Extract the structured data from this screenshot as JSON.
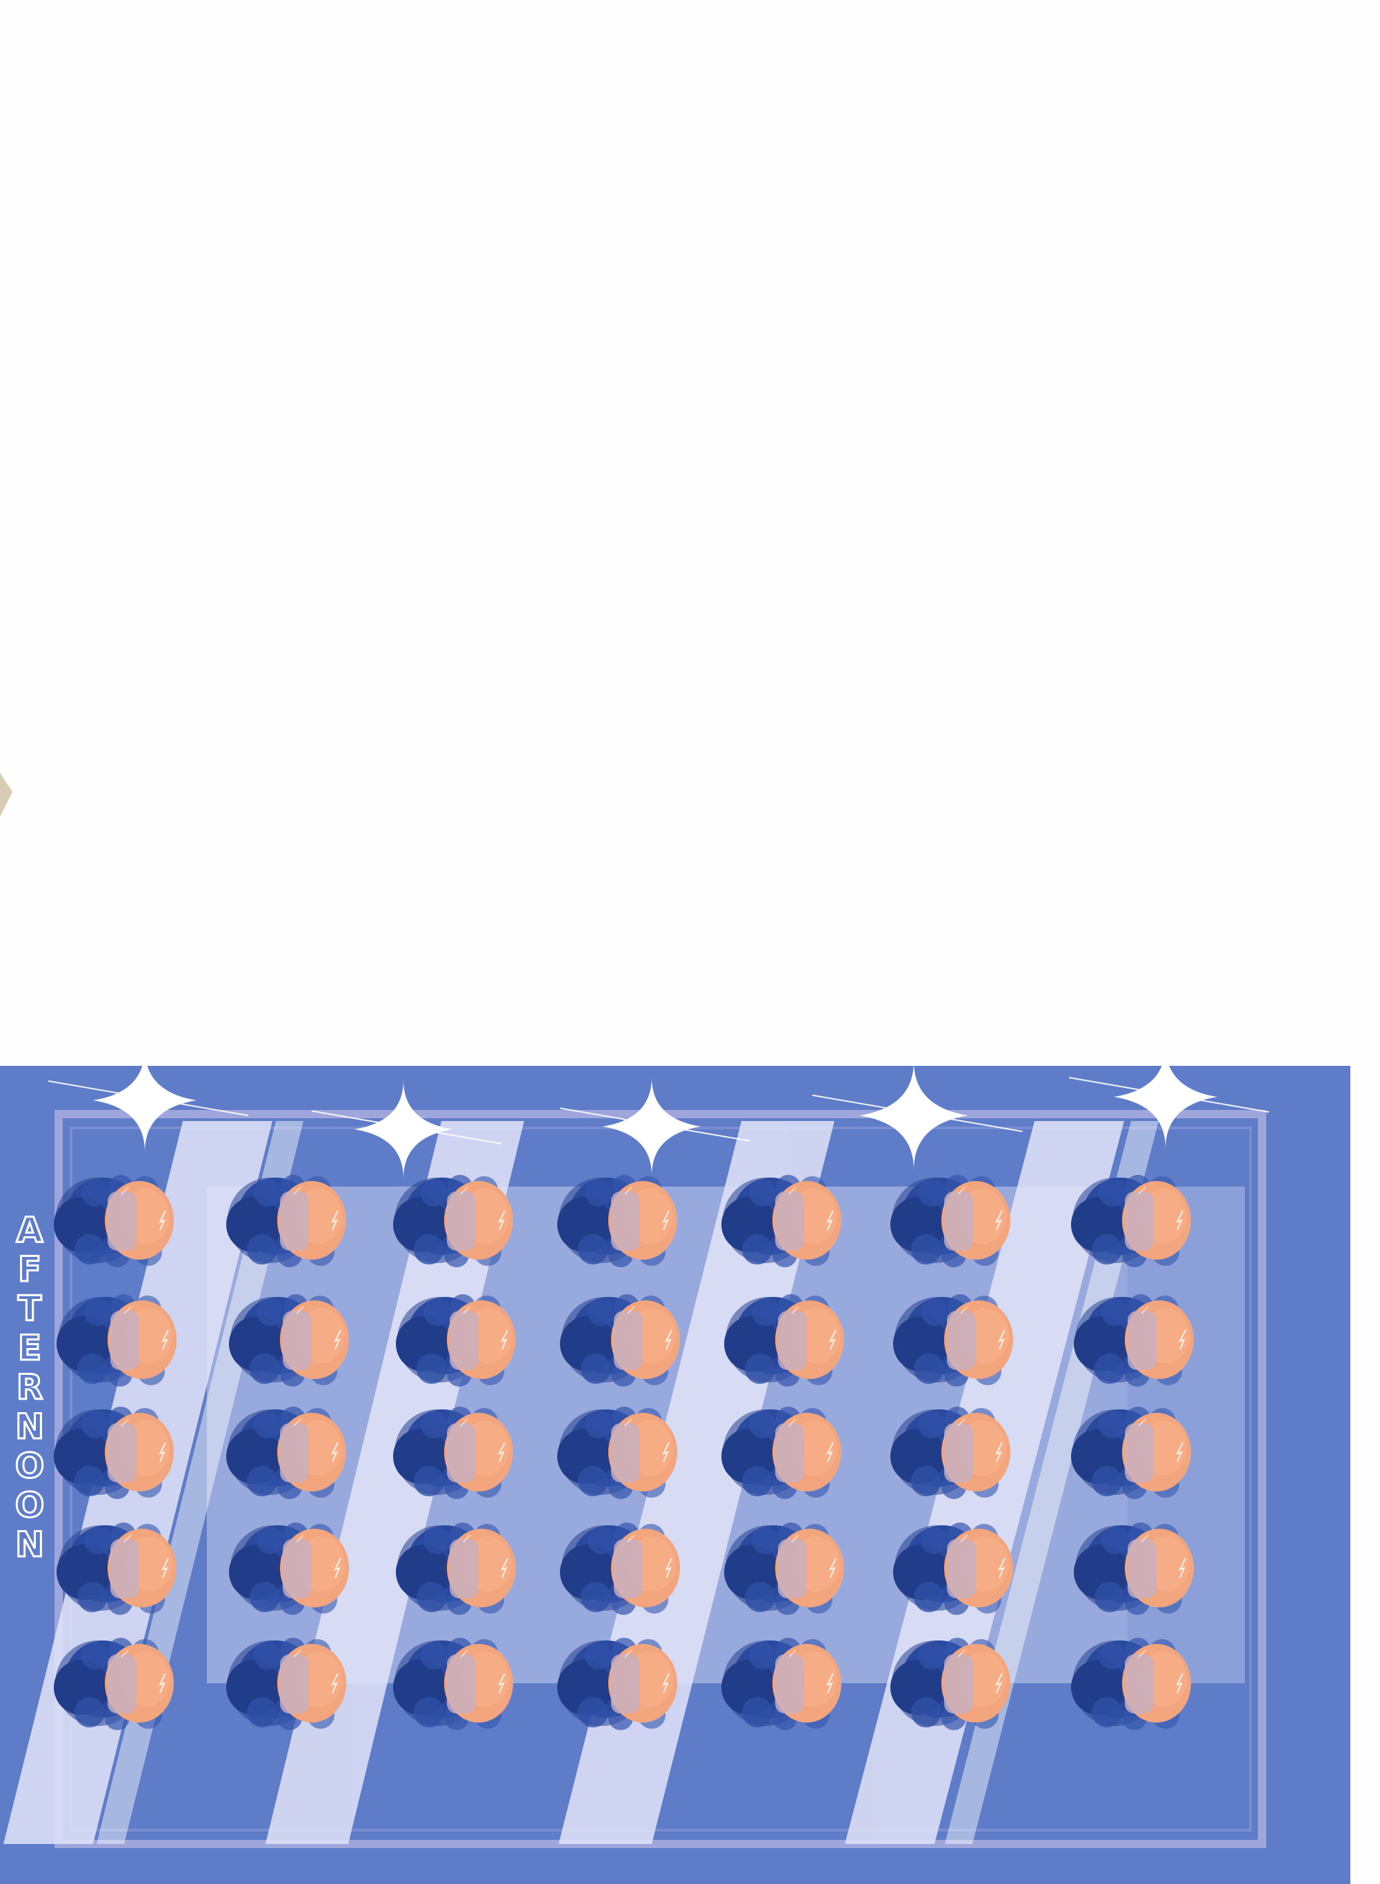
{
  "caption": {
    "text": "AFTERNOON",
    "color": "#ffffff"
  },
  "palette": {
    "background": "#fefefe",
    "panel_blue": "#5e7cc8",
    "frame_lavender": "#9ea6dc",
    "stripe_light": "#e2e4f8",
    "band_mid": "#a2b2e2",
    "hair_dark": "#27428f",
    "face_peach": "#f3a57d",
    "fleck_tan": "#d8cdb4"
  },
  "grid": {
    "rows": 5,
    "columns": 7,
    "figure": "head-of-blue-haired-character"
  },
  "sparkles": {
    "count": 5,
    "figure": "four-point-star"
  }
}
